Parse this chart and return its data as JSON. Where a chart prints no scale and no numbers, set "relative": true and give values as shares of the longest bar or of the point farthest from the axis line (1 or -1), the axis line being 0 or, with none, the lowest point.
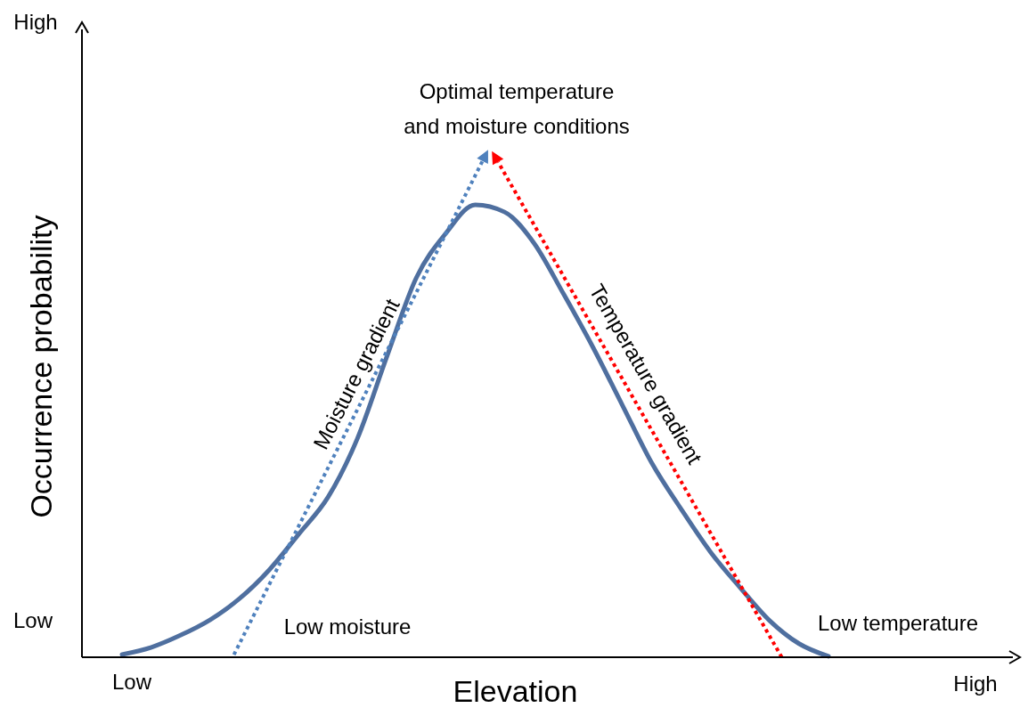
{
  "chart_data": {
    "type": "line",
    "xlabel": "Elevation",
    "ylabel": "Occurrence probability",
    "relative": true,
    "categories": [
      null,
      null,
      null,
      null,
      null,
      null,
      null,
      null,
      null,
      null,
      null,
      null,
      null,
      null,
      null,
      null,
      null,
      null,
      null,
      null,
      null,
      null,
      null,
      null,
      null
    ],
    "line_style": "solid",
    "series": [
      {
        "color": "#4f6f9f",
        "values": [
          0.006,
          0.022,
          0.049,
          0.083,
          0.13,
          0.193,
          0.272,
          0.354,
          0.484,
          0.665,
          0.839,
          0.937,
          1,
          0.984,
          0.915,
          0.803,
          0.685,
          0.557,
          0.429,
          0.327,
          0.232,
          0.154,
          0.081,
          0.03,
          0.002
        ]
      }
    ],
    "annotations": [
      "Optimal temperature\nand moisture conditions",
      "Moisture gradient",
      "Temperature gradient",
      "Low moisture",
      "Low temperature",
      "High",
      "Low",
      "Low",
      "High"
    ]
  }
}
